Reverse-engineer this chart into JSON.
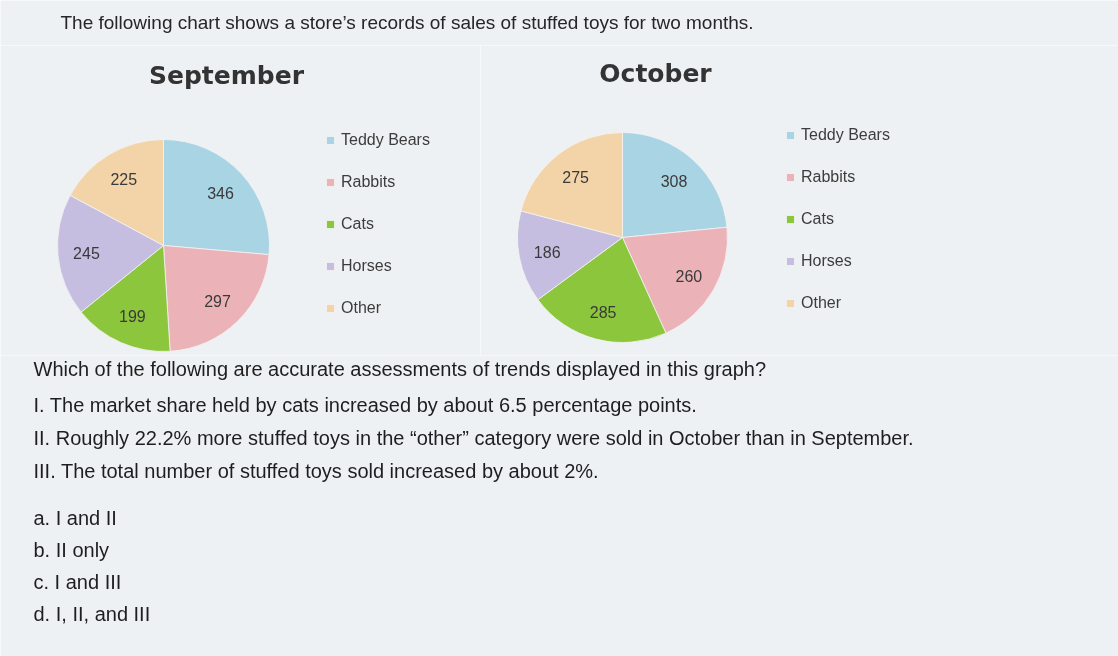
{
  "chart_data": [
    {
      "type": "pie",
      "title": "September",
      "categories": [
        "Teddy Bears",
        "Rabbits",
        "Cats",
        "Horses",
        "Other"
      ],
      "values": [
        346,
        297,
        199,
        245,
        225
      ],
      "colors": [
        "#a9d4e4",
        "#ebb3b8",
        "#8cc63c",
        "#c6bee0",
        "#f3d4a9"
      ],
      "data_labels": true,
      "legend": "right",
      "annotations": [
        "The following chart shows a store’s records of sales of stuffed toys for two months."
      ]
    },
    {
      "type": "pie",
      "title": "October",
      "categories": [
        "Teddy Bears",
        "Rabbits",
        "Cats",
        "Horses",
        "Other"
      ],
      "values": [
        308,
        260,
        285,
        186,
        275
      ],
      "colors": [
        "#a9d4e4",
        "#ebb3b8",
        "#8cc63c",
        "#c6bee0",
        "#f3d4a9"
      ],
      "data_labels": true,
      "legend": "right",
      "annotations": [
        "Which of the following are accurate assessments of trends displayed in this graph?",
        "I. The market share held by cats increased by about 6.5 percentage points.",
        "II. Roughly 22.2% more stuffed toys in the “other” category were sold in October than in September.",
        "III. The total number of stuffed toys sold increased by about 2%.",
        "a.  I and II",
        "b.  II only",
        "c.  I and III",
        "d.  I, II, and III"
      ]
    }
  ]
}
